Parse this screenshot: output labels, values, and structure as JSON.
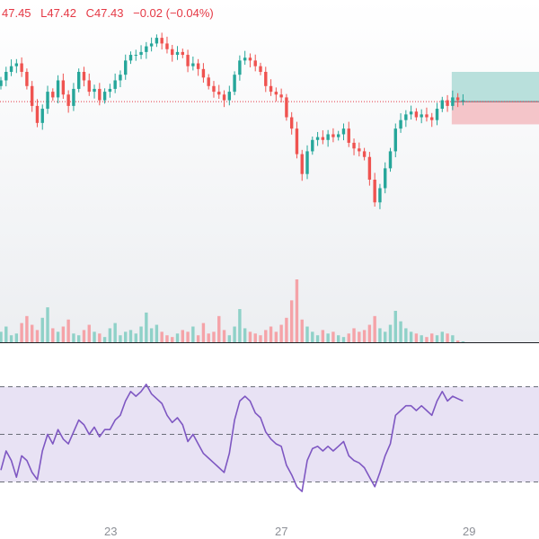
{
  "legend": {
    "high": "47.45",
    "low": "L47.42",
    "close": "C47.43",
    "change": "−0.02 (−0.04%)"
  },
  "time_axis": {
    "labels": [
      "23",
      "27",
      "29"
    ]
  },
  "colors": {
    "up": "#26a69a",
    "down": "#ef5350",
    "up_volume": "#8fd1c8",
    "down_volume": "#f5a3a8",
    "rsi_line": "#7e57c2",
    "rsi_band": "#e8e2f4",
    "price_line": "#e53945",
    "profit_zone": "#b9e0dc",
    "loss_zone": "#f4c5c9"
  },
  "chart_data": [
    {
      "type": "candlestick",
      "title": "",
      "price_range": [
        46.6,
        47.55
      ],
      "current_price": 47.255,
      "position_tool": {
        "target": 47.36,
        "entry": 47.255,
        "stop": 47.175
      },
      "closes": [
        47.33,
        47.36,
        47.38,
        47.39,
        47.36,
        47.31,
        47.24,
        47.18,
        47.23,
        47.29,
        47.27,
        47.33,
        47.28,
        47.24,
        47.3,
        47.36,
        47.33,
        47.29,
        47.3,
        47.26,
        47.29,
        47.3,
        47.33,
        47.35,
        47.4,
        47.42,
        47.42,
        47.43,
        47.45,
        47.46,
        47.48,
        47.46,
        47.44,
        47.42,
        47.43,
        47.42,
        47.38,
        47.39,
        47.37,
        47.34,
        47.31,
        47.29,
        47.28,
        47.26,
        47.29,
        47.35,
        47.4,
        47.41,
        47.4,
        47.38,
        47.36,
        47.31,
        47.29,
        47.28,
        47.27,
        47.2,
        47.16,
        47.07,
        47.0,
        47.08,
        47.12,
        47.13,
        47.12,
        47.14,
        47.13,
        47.14,
        47.16,
        47.11,
        47.09,
        47.08,
        47.06,
        46.98,
        46.9,
        46.95,
        47.02,
        47.08,
        47.16,
        47.19,
        47.21,
        47.22,
        47.2,
        47.21,
        47.2,
        47.19,
        47.23,
        47.26,
        47.24,
        47.27,
        47.26,
        47.26
      ],
      "volumes": [
        12,
        18,
        8,
        10,
        22,
        30,
        20,
        14,
        28,
        40,
        16,
        12,
        18,
        26,
        10,
        8,
        14,
        20,
        12,
        10,
        6,
        16,
        22,
        8,
        12,
        14,
        10,
        18,
        34,
        16,
        20,
        12,
        8,
        6,
        10,
        14,
        12,
        18,
        8,
        22,
        10,
        12,
        30,
        14,
        8,
        18,
        38,
        16,
        12,
        10,
        8,
        14,
        18,
        12,
        20,
        28,
        48,
        72,
        26,
        18,
        12,
        8,
        14,
        10,
        12,
        8,
        6,
        10,
        16,
        12,
        14,
        20,
        30,
        16,
        12,
        20,
        36,
        24,
        16,
        12,
        10,
        8,
        6,
        10,
        8,
        12,
        10,
        8,
        2,
        1
      ]
    },
    {
      "type": "line",
      "title": "",
      "name": "",
      "ylim": [
        0,
        100
      ],
      "bands": [
        70,
        50,
        30
      ],
      "values": [
        35,
        43,
        39,
        32,
        41,
        39,
        34,
        31,
        43,
        50,
        46,
        52,
        48,
        46,
        51,
        56,
        54,
        50,
        53,
        49,
        52,
        52,
        56,
        58,
        64,
        68,
        66,
        68,
        71,
        67,
        65,
        63,
        58,
        55,
        57,
        54,
        47,
        50,
        46,
        42,
        40,
        38,
        36,
        34,
        42,
        56,
        64,
        66,
        64,
        59,
        57,
        51,
        48,
        46,
        45,
        37,
        33,
        28,
        26,
        39,
        44,
        45,
        43,
        45,
        43,
        45,
        47,
        41,
        39,
        38,
        36,
        32,
        28,
        34,
        41,
        46,
        58,
        60,
        62,
        62,
        60,
        62,
        60,
        58,
        64,
        68,
        64,
        66,
        65,
        64
      ]
    }
  ]
}
